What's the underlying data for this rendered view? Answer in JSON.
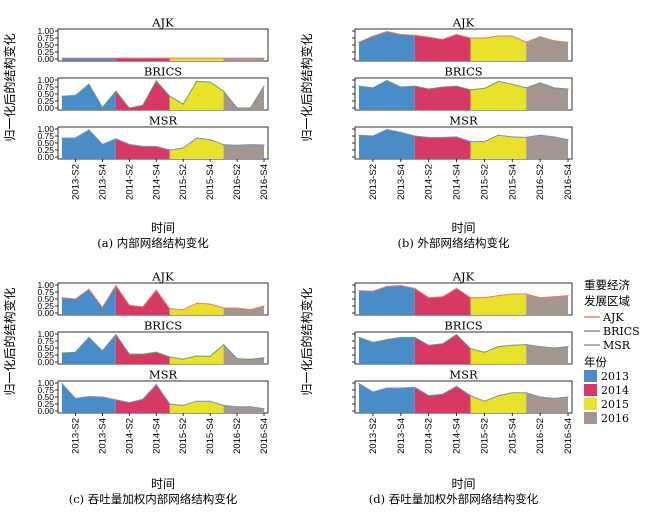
{
  "chart_data": [
    {
      "type": "area",
      "caption": "(a) 内部网络结构变化",
      "ylabel": "归一化后的结构变化",
      "xlabel": "时间",
      "categories": [
        "2013-S1",
        "2013-S2",
        "2013-S3",
        "2013-S4",
        "2014-S1",
        "2014-S2",
        "2014-S3",
        "2014-S4",
        "2015-S1",
        "2015-S2",
        "2015-S3",
        "2015-S4",
        "2016-S1",
        "2016-S2",
        "2016-S3",
        "2016-S4"
      ],
      "x_tick_labels": [
        "2013-S2",
        "2013-S4",
        "2014-S2",
        "2014-S4",
        "2015-S2",
        "2015-S4",
        "2016-S2",
        "2016-S4"
      ],
      "y_ticks": [
        "0.00",
        "0.25",
        "0.50",
        "0.75",
        "1.00"
      ],
      "ylim": [
        0,
        1
      ],
      "panels": [
        {
          "label": "AJK",
          "values": [
            0.03,
            0.03,
            0.03,
            0.03,
            0.03,
            0.03,
            0.03,
            0.03,
            0.03,
            0.03,
            0.03,
            0.03,
            0.03,
            0.03,
            0.03,
            0.03
          ]
        },
        {
          "label": "BRICS",
          "values": [
            0.42,
            0.45,
            0.85,
            0.02,
            0.6,
            0.0,
            0.1,
            0.97,
            0.42,
            0.14,
            0.95,
            0.93,
            0.6,
            0.0,
            0.0,
            0.78
          ]
        },
        {
          "label": "MSR",
          "values": [
            0.68,
            0.68,
            0.97,
            0.45,
            0.65,
            0.45,
            0.38,
            0.38,
            0.25,
            0.32,
            0.68,
            0.62,
            0.44,
            0.42,
            0.44,
            0.43
          ]
        }
      ]
    },
    {
      "type": "area",
      "caption": "(b) 外部网络结构变化",
      "ylabel": "归一化后的结构变化",
      "xlabel": "时间",
      "categories": [
        "2013-S1",
        "2013-S2",
        "2013-S3",
        "2013-S4",
        "2014-S1",
        "2014-S2",
        "2014-S3",
        "2014-S4",
        "2015-S1",
        "2015-S2",
        "2015-S3",
        "2015-S4",
        "2016-S1",
        "2016-S2",
        "2016-S3",
        "2016-S4"
      ],
      "x_tick_labels": [
        "2013-S2",
        "2013-S4",
        "2014-S2",
        "2014-S4",
        "2015-S2",
        "2015-S4",
        "2016-S2",
        "2016-S4"
      ],
      "panels": [
        {
          "label": "AJK",
          "values": [
            0.6,
            0.82,
            0.98,
            0.88,
            0.85,
            0.78,
            0.7,
            0.88,
            0.75,
            0.75,
            0.82,
            0.82,
            0.6,
            0.8,
            0.65,
            0.6
          ]
        },
        {
          "label": "BRICS",
          "values": [
            0.78,
            0.72,
            0.98,
            0.75,
            0.78,
            0.68,
            0.75,
            0.78,
            0.65,
            0.7,
            0.95,
            0.85,
            0.72,
            0.9,
            0.72,
            0.68
          ]
        },
        {
          "label": "MSR",
          "values": [
            0.78,
            0.75,
            0.98,
            0.88,
            0.75,
            0.7,
            0.7,
            0.72,
            0.55,
            0.55,
            0.78,
            0.72,
            0.7,
            0.78,
            0.72,
            0.62
          ]
        }
      ]
    },
    {
      "type": "area",
      "caption": "(c) 吞吐量加权内部网络结构变化",
      "ylabel": "归一化后的结构变化",
      "xlabel": "时间",
      "categories": [
        "2013-S1",
        "2013-S2",
        "2013-S3",
        "2013-S4",
        "2014-S1",
        "2014-S2",
        "2014-S3",
        "2014-S4",
        "2015-S1",
        "2015-S2",
        "2015-S3",
        "2015-S4",
        "2016-S1",
        "2016-S2",
        "2016-S3",
        "2016-S4"
      ],
      "x_tick_labels": [
        "2013-S2",
        "2013-S4",
        "2014-S2",
        "2014-S4",
        "2015-S2",
        "2015-S4",
        "2016-S2",
        "2016-S4"
      ],
      "y_ticks": [
        "0.00",
        "0.25",
        "0.50",
        "0.75",
        "1.00"
      ],
      "ylim": [
        0,
        1
      ],
      "panels": [
        {
          "label": "AJK",
          "values": [
            0.55,
            0.5,
            0.85,
            0.2,
            0.98,
            0.28,
            0.22,
            0.82,
            0.15,
            0.12,
            0.35,
            0.32,
            0.18,
            0.18,
            0.12,
            0.25
          ]
        },
        {
          "label": "BRICS",
          "values": [
            0.32,
            0.35,
            0.88,
            0.4,
            0.98,
            0.28,
            0.28,
            0.35,
            0.18,
            0.1,
            0.22,
            0.2,
            0.62,
            0.12,
            0.1,
            0.15
          ]
        },
        {
          "label": "MSR",
          "values": [
            0.98,
            0.45,
            0.52,
            0.5,
            0.4,
            0.3,
            0.42,
            0.95,
            0.25,
            0.2,
            0.35,
            0.35,
            0.2,
            0.15,
            0.15,
            0.08
          ]
        }
      ]
    },
    {
      "type": "area",
      "caption": "(d) 吞吐量加权外部网络结构变化",
      "ylabel": "归一化后的结构变化",
      "xlabel": "时间",
      "categories": [
        "2013-S1",
        "2013-S2",
        "2013-S3",
        "2013-S4",
        "2014-S1",
        "2014-S2",
        "2014-S3",
        "2014-S4",
        "2015-S1",
        "2015-S2",
        "2015-S3",
        "2015-S4",
        "2016-S1",
        "2016-S2",
        "2016-S3",
        "2016-S4"
      ],
      "x_tick_labels": [
        "2013-S2",
        "2013-S4",
        "2014-S2",
        "2014-S4",
        "2015-S2",
        "2015-S4",
        "2016-S2",
        "2016-S4"
      ],
      "panels": [
        {
          "label": "AJK",
          "values": [
            0.8,
            0.78,
            0.95,
            0.98,
            0.88,
            0.55,
            0.58,
            0.88,
            0.55,
            0.55,
            0.62,
            0.68,
            0.68,
            0.55,
            0.58,
            0.62
          ]
        },
        {
          "label": "BRICS",
          "values": [
            0.88,
            0.7,
            0.8,
            0.88,
            0.88,
            0.6,
            0.65,
            0.98,
            0.48,
            0.35,
            0.55,
            0.6,
            0.62,
            0.55,
            0.5,
            0.55
          ]
        },
        {
          "label": "MSR",
          "values": [
            0.98,
            0.68,
            0.82,
            0.82,
            0.85,
            0.55,
            0.6,
            0.88,
            0.55,
            0.35,
            0.55,
            0.65,
            0.65,
            0.5,
            0.45,
            0.5
          ]
        }
      ]
    }
  ],
  "years": [
    {
      "label": "2013",
      "color": "#4a8cc7"
    },
    {
      "label": "2014",
      "color": "#d63a64"
    },
    {
      "label": "2015",
      "color": "#e8e22c"
    },
    {
      "label": "2016",
      "color": "#a39691"
    }
  ],
  "legend": {
    "line_title_1": "重要经济",
    "line_title_2": "发展区域",
    "line_items": [
      {
        "label": "AJK",
        "color": "#e87e6e"
      },
      {
        "label": "BRICS",
        "color": "#6e9a7e"
      },
      {
        "label": "MSR",
        "color": "#7f8fc0"
      }
    ],
    "fill_title": "年份"
  }
}
